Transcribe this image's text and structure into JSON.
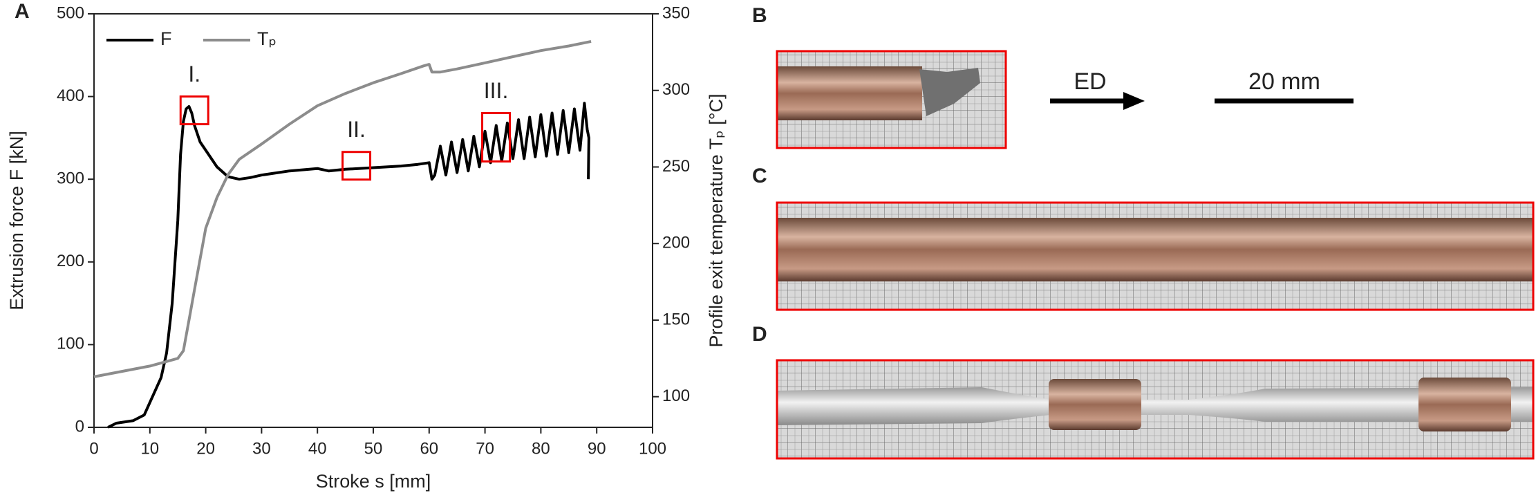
{
  "chart_data": {
    "type": "line",
    "panel": "A",
    "xlabel": "Stroke s [mm]",
    "ylabel": "Extrusion force F [kN]",
    "y2label": "Profile exit temperature Tₚ [°C]",
    "xlim": [
      0,
      100
    ],
    "xticks": [
      0,
      10,
      20,
      30,
      40,
      50,
      60,
      70,
      80,
      90,
      100
    ],
    "ylim": [
      0,
      500
    ],
    "yticks": [
      0,
      100,
      200,
      300,
      400,
      500
    ],
    "y2lim": [
      80,
      350
    ],
    "y2ticks": [
      100,
      150,
      200,
      250,
      300,
      350
    ],
    "legend": "upper left",
    "annotations": [
      "I.",
      "II.",
      "III."
    ],
    "series": [
      {
        "name": "F",
        "color": "#000000",
        "x": [
          2.5,
          4,
          7,
          9,
          10,
          12,
          13,
          14,
          15,
          15.5,
          16,
          16.5,
          17,
          17.5,
          18,
          19,
          20,
          22,
          24,
          26,
          28,
          30,
          35,
          40,
          42,
          45,
          50,
          55,
          58,
          60,
          60.5,
          61,
          62,
          63,
          64,
          65,
          66,
          67,
          68,
          69,
          70,
          71,
          72,
          73,
          74,
          75,
          76,
          77,
          78,
          79,
          80,
          81,
          82,
          83,
          84,
          85,
          86,
          87,
          87.8,
          88.3,
          88.6,
          88.5
        ],
        "values": [
          0,
          5,
          8,
          15,
          30,
          60,
          90,
          150,
          250,
          330,
          370,
          385,
          388,
          380,
          365,
          345,
          335,
          315,
          303,
          300,
          302,
          305,
          310,
          313,
          310,
          312,
          314,
          316,
          318,
          320,
          300,
          305,
          340,
          305,
          345,
          308,
          348,
          310,
          352,
          315,
          358,
          320,
          365,
          322,
          368,
          325,
          372,
          325,
          375,
          327,
          378,
          328,
          380,
          330,
          383,
          332,
          385,
          335,
          392,
          360,
          350,
          300
        ]
      },
      {
        "name": "Tₚ",
        "color": "#8c8c8c",
        "axis": "y2",
        "x": [
          0,
          10,
          15,
          16,
          17,
          18,
          19,
          20,
          22,
          24,
          26,
          30,
          35,
          40,
          45,
          50,
          55,
          59,
          60,
          60.5,
          62,
          65,
          70,
          75,
          80,
          85,
          89
        ],
        "values": [
          113,
          120,
          125,
          130,
          150,
          170,
          190,
          210,
          230,
          245,
          255,
          265,
          278,
          290,
          298,
          305,
          311,
          316,
          317,
          312,
          312,
          314,
          318,
          322,
          326,
          329,
          332
        ]
      }
    ]
  },
  "photos": {
    "labels": [
      "B",
      "C",
      "D"
    ],
    "direction": "ED",
    "scale_bar": "20 mm"
  }
}
